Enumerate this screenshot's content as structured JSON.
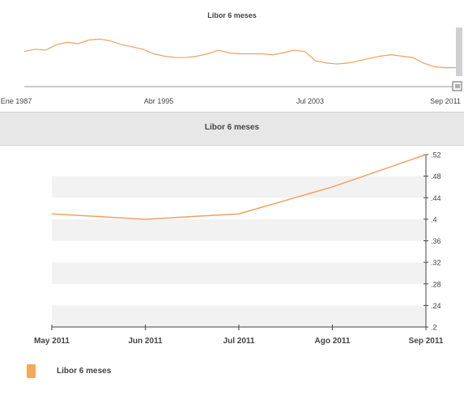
{
  "colors": {
    "line": "#f0a060",
    "band": "#f2f2f2",
    "header_bg": "#e7e7e7",
    "axis": "#444444"
  },
  "navigator": {
    "title": "Libor 6 meses",
    "x_labels": [
      "Ene 1987",
      "Abr 1995",
      "Jul 2003",
      "Sep 2011"
    ],
    "scrollbar_grip_icon": "grip-icon"
  },
  "chart_data": {
    "type": "line",
    "title": "Libor 6 meses",
    "categories": [
      "May 2011",
      "Jun 2011",
      "Jul 2011",
      "Ago 2011",
      "Sep 2011"
    ],
    "series": [
      {
        "name": "Libor 6 meses",
        "values": [
          0.41,
          0.4,
          0.41,
          0.46,
          0.52
        ]
      }
    ],
    "ylim": [
      0.2,
      0.52
    ],
    "yticks": [
      ".2",
      ".24",
      ".28",
      ".32",
      ".36",
      ".4",
      ".44",
      ".48",
      ".52"
    ],
    "xlabel": "",
    "ylabel": "",
    "grid": "alternating horizontal bands",
    "legend": "bottom-left"
  }
}
